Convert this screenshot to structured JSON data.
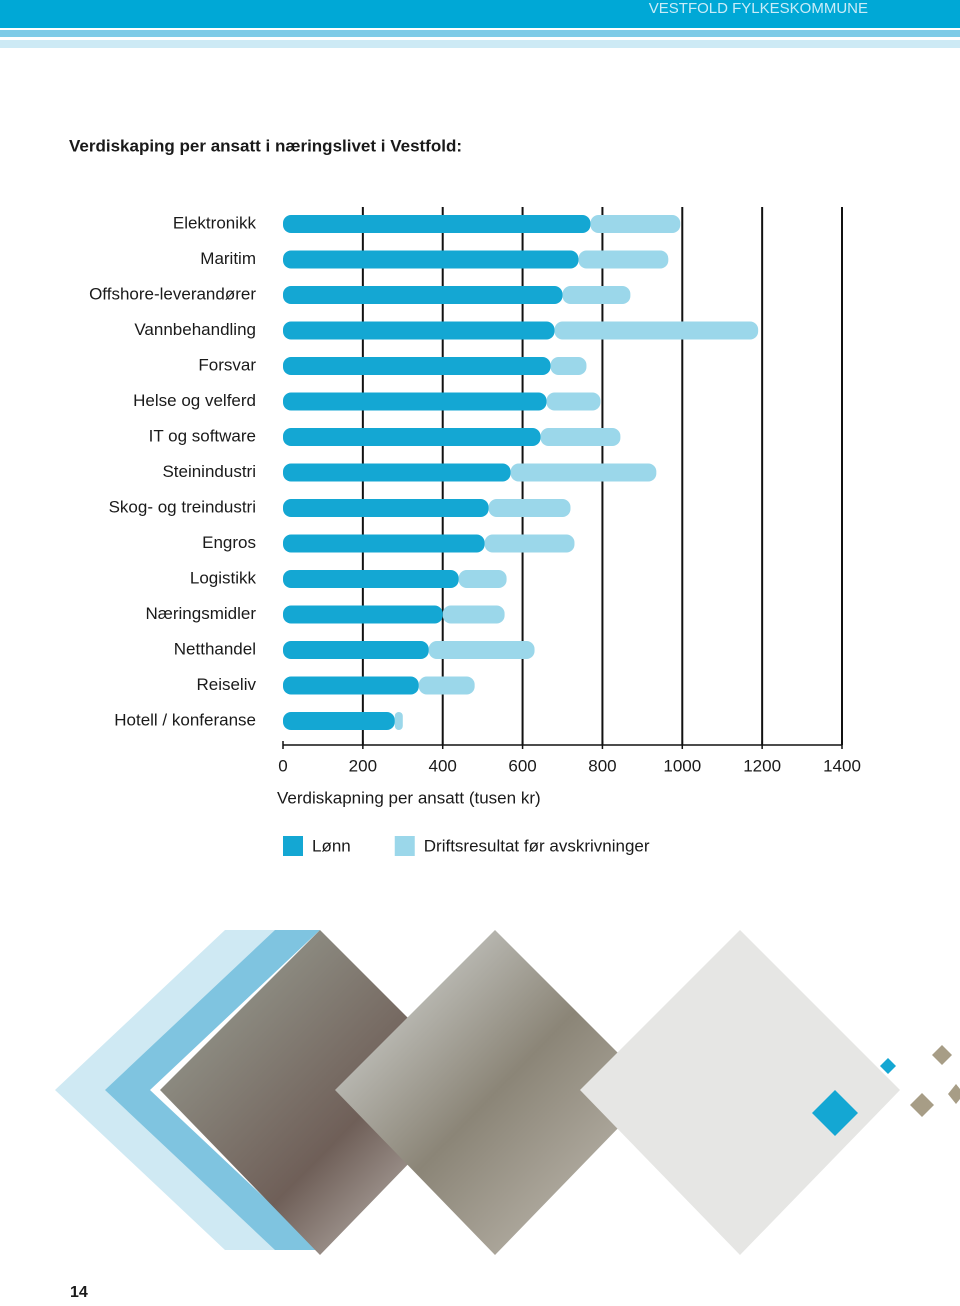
{
  "header": "VESTFOLD FYLKESKOMMUNE",
  "page_number": 14,
  "chart_data": {
    "type": "stacked-barh",
    "title": "Verdiskaping per ansatt i næringslivet i Vestfold:",
    "categories": [
      "Elektronikk",
      "Maritim",
      "Offshore-leverandører",
      "Vannbehandling",
      "Forsvar",
      "Helse og velferd",
      "IT og software",
      "Steinindustri",
      "Skog- og treindustri",
      "Engros",
      "Logistikk",
      "Næringsmidler",
      "Netthandel",
      "Reiseliv",
      "Hotell / konferanse"
    ],
    "series": [
      {
        "name": "Lønn",
        "color": "#14a7d3",
        "values": [
          770,
          740,
          700,
          680,
          670,
          660,
          645,
          570,
          515,
          505,
          440,
          400,
          365,
          340,
          280
        ]
      },
      {
        "name": "Driftsresultat før avskrivninger",
        "color": "#9bd7ea",
        "values": [
          225,
          225,
          170,
          510,
          90,
          135,
          200,
          365,
          205,
          225,
          120,
          155,
          265,
          140,
          20
        ]
      }
    ],
    "xlabel": "Verdiskapning per ansatt (tusen kr)",
    "xlim": [
      0,
      1400
    ],
    "xticks": [
      0,
      200,
      400,
      600,
      800,
      1000,
      1200,
      1400
    ],
    "grid": true
  }
}
